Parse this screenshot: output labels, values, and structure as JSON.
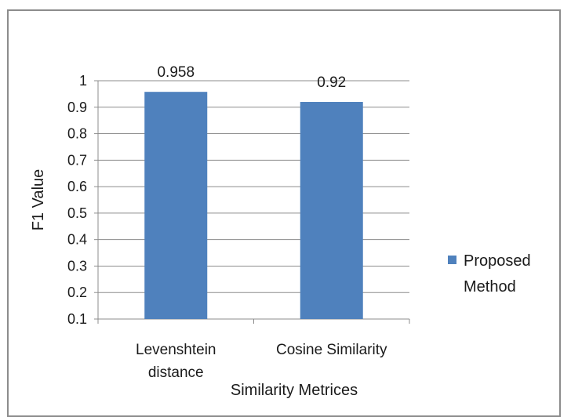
{
  "chart_data": {
    "type": "bar",
    "categories": [
      "Levenshtein distance",
      "Cosine Similarity"
    ],
    "category_label_lines": [
      [
        "Levenshtein",
        "distance"
      ],
      [
        "Cosine Similarity"
      ]
    ],
    "series": [
      {
        "name": "Proposed Method",
        "values": [
          0.958,
          0.92
        ],
        "color": "#4f81bd"
      }
    ],
    "data_labels": [
      "0.958",
      "0.92"
    ],
    "legend_lines": [
      "Proposed",
      "Method"
    ],
    "xlabel": "Similarity Metrices",
    "ylabel": "F1 Value",
    "ylim": [
      0.1,
      1
    ],
    "yticks": [
      "0.1",
      "0.2",
      "0.3",
      "0.4",
      "0.5",
      "0.6",
      "0.7",
      "0.8",
      "0.9",
      "1"
    ],
    "grid": true,
    "legend_position": "right",
    "colors": {
      "bar": "#4f81bd",
      "grid": "#8c8c8c",
      "axis": "#8c8c8c",
      "border": "#8c8c8c"
    }
  }
}
